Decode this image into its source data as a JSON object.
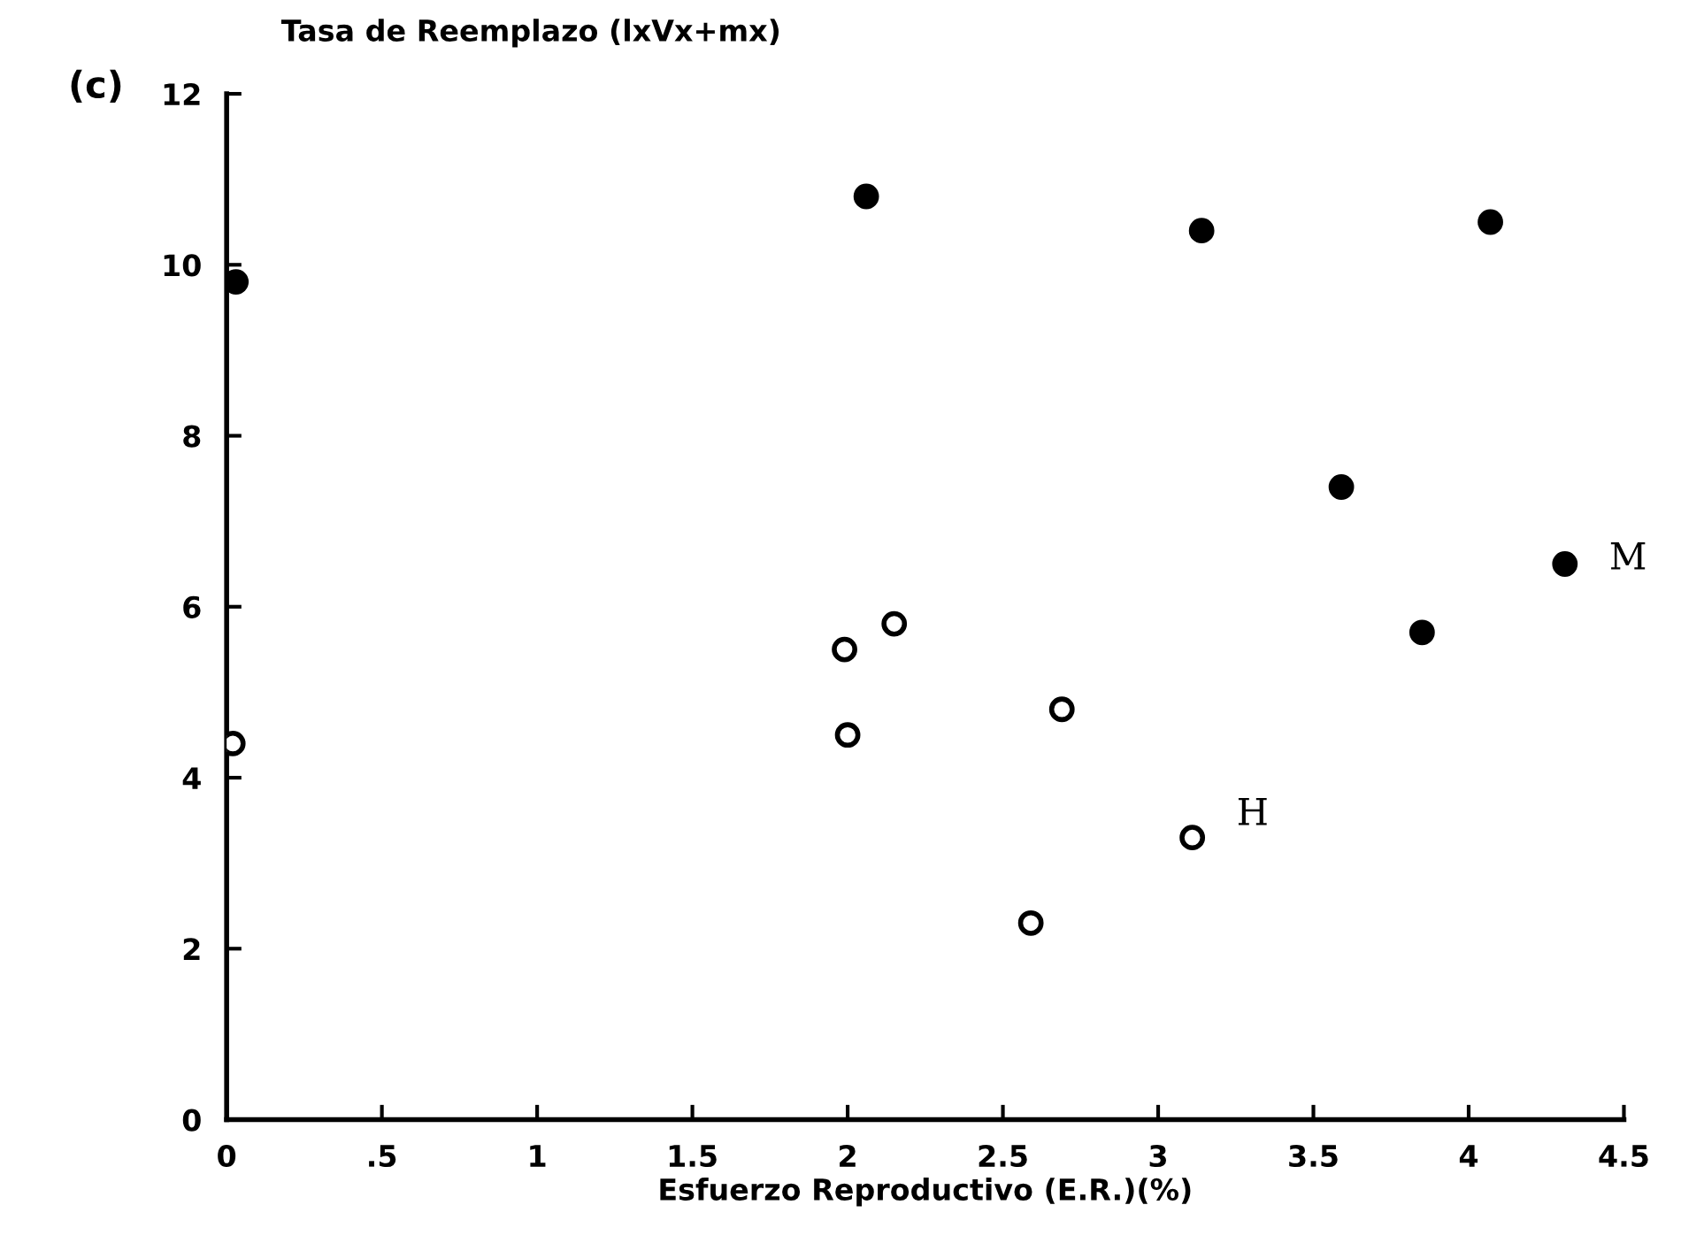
{
  "chart_data": {
    "type": "scatter",
    "xlabel": "Esfuerzo Reproductivo (E.R.)(%)",
    "ylabel": "Tasa de Reemplazo (lxVx+mx)",
    "annotations": [
      "(c)"
    ],
    "xlim": [
      0,
      4.5
    ],
    "ylim": [
      0,
      12
    ],
    "xticks": [
      0,
      {
        "value": 0.5,
        "label": ".5"
      },
      1,
      1.5,
      2,
      2.5,
      3,
      3.5,
      4,
      4.5
    ],
    "yticks": [
      0,
      2,
      4,
      6,
      8,
      10,
      12
    ],
    "grid": false,
    "series": [
      {
        "name": "M",
        "color": "#000000",
        "marker": "circle",
        "x": [
          0.03,
          2.06,
          3.14,
          4.07,
          3.59,
          4.31,
          3.85
        ],
        "values": [
          9.8,
          10.8,
          10.4,
          10.5,
          7.4,
          6.5,
          5.7
        ]
      },
      {
        "name": "H",
        "color": "#000000",
        "marker": "circle",
        "x": [
          0.02,
          1.99,
          2.15,
          2.0,
          2.69,
          3.11,
          2.59
        ],
        "values": [
          4.4,
          5.5,
          5.8,
          4.5,
          4.8,
          3.3,
          2.3
        ]
      }
    ]
  }
}
